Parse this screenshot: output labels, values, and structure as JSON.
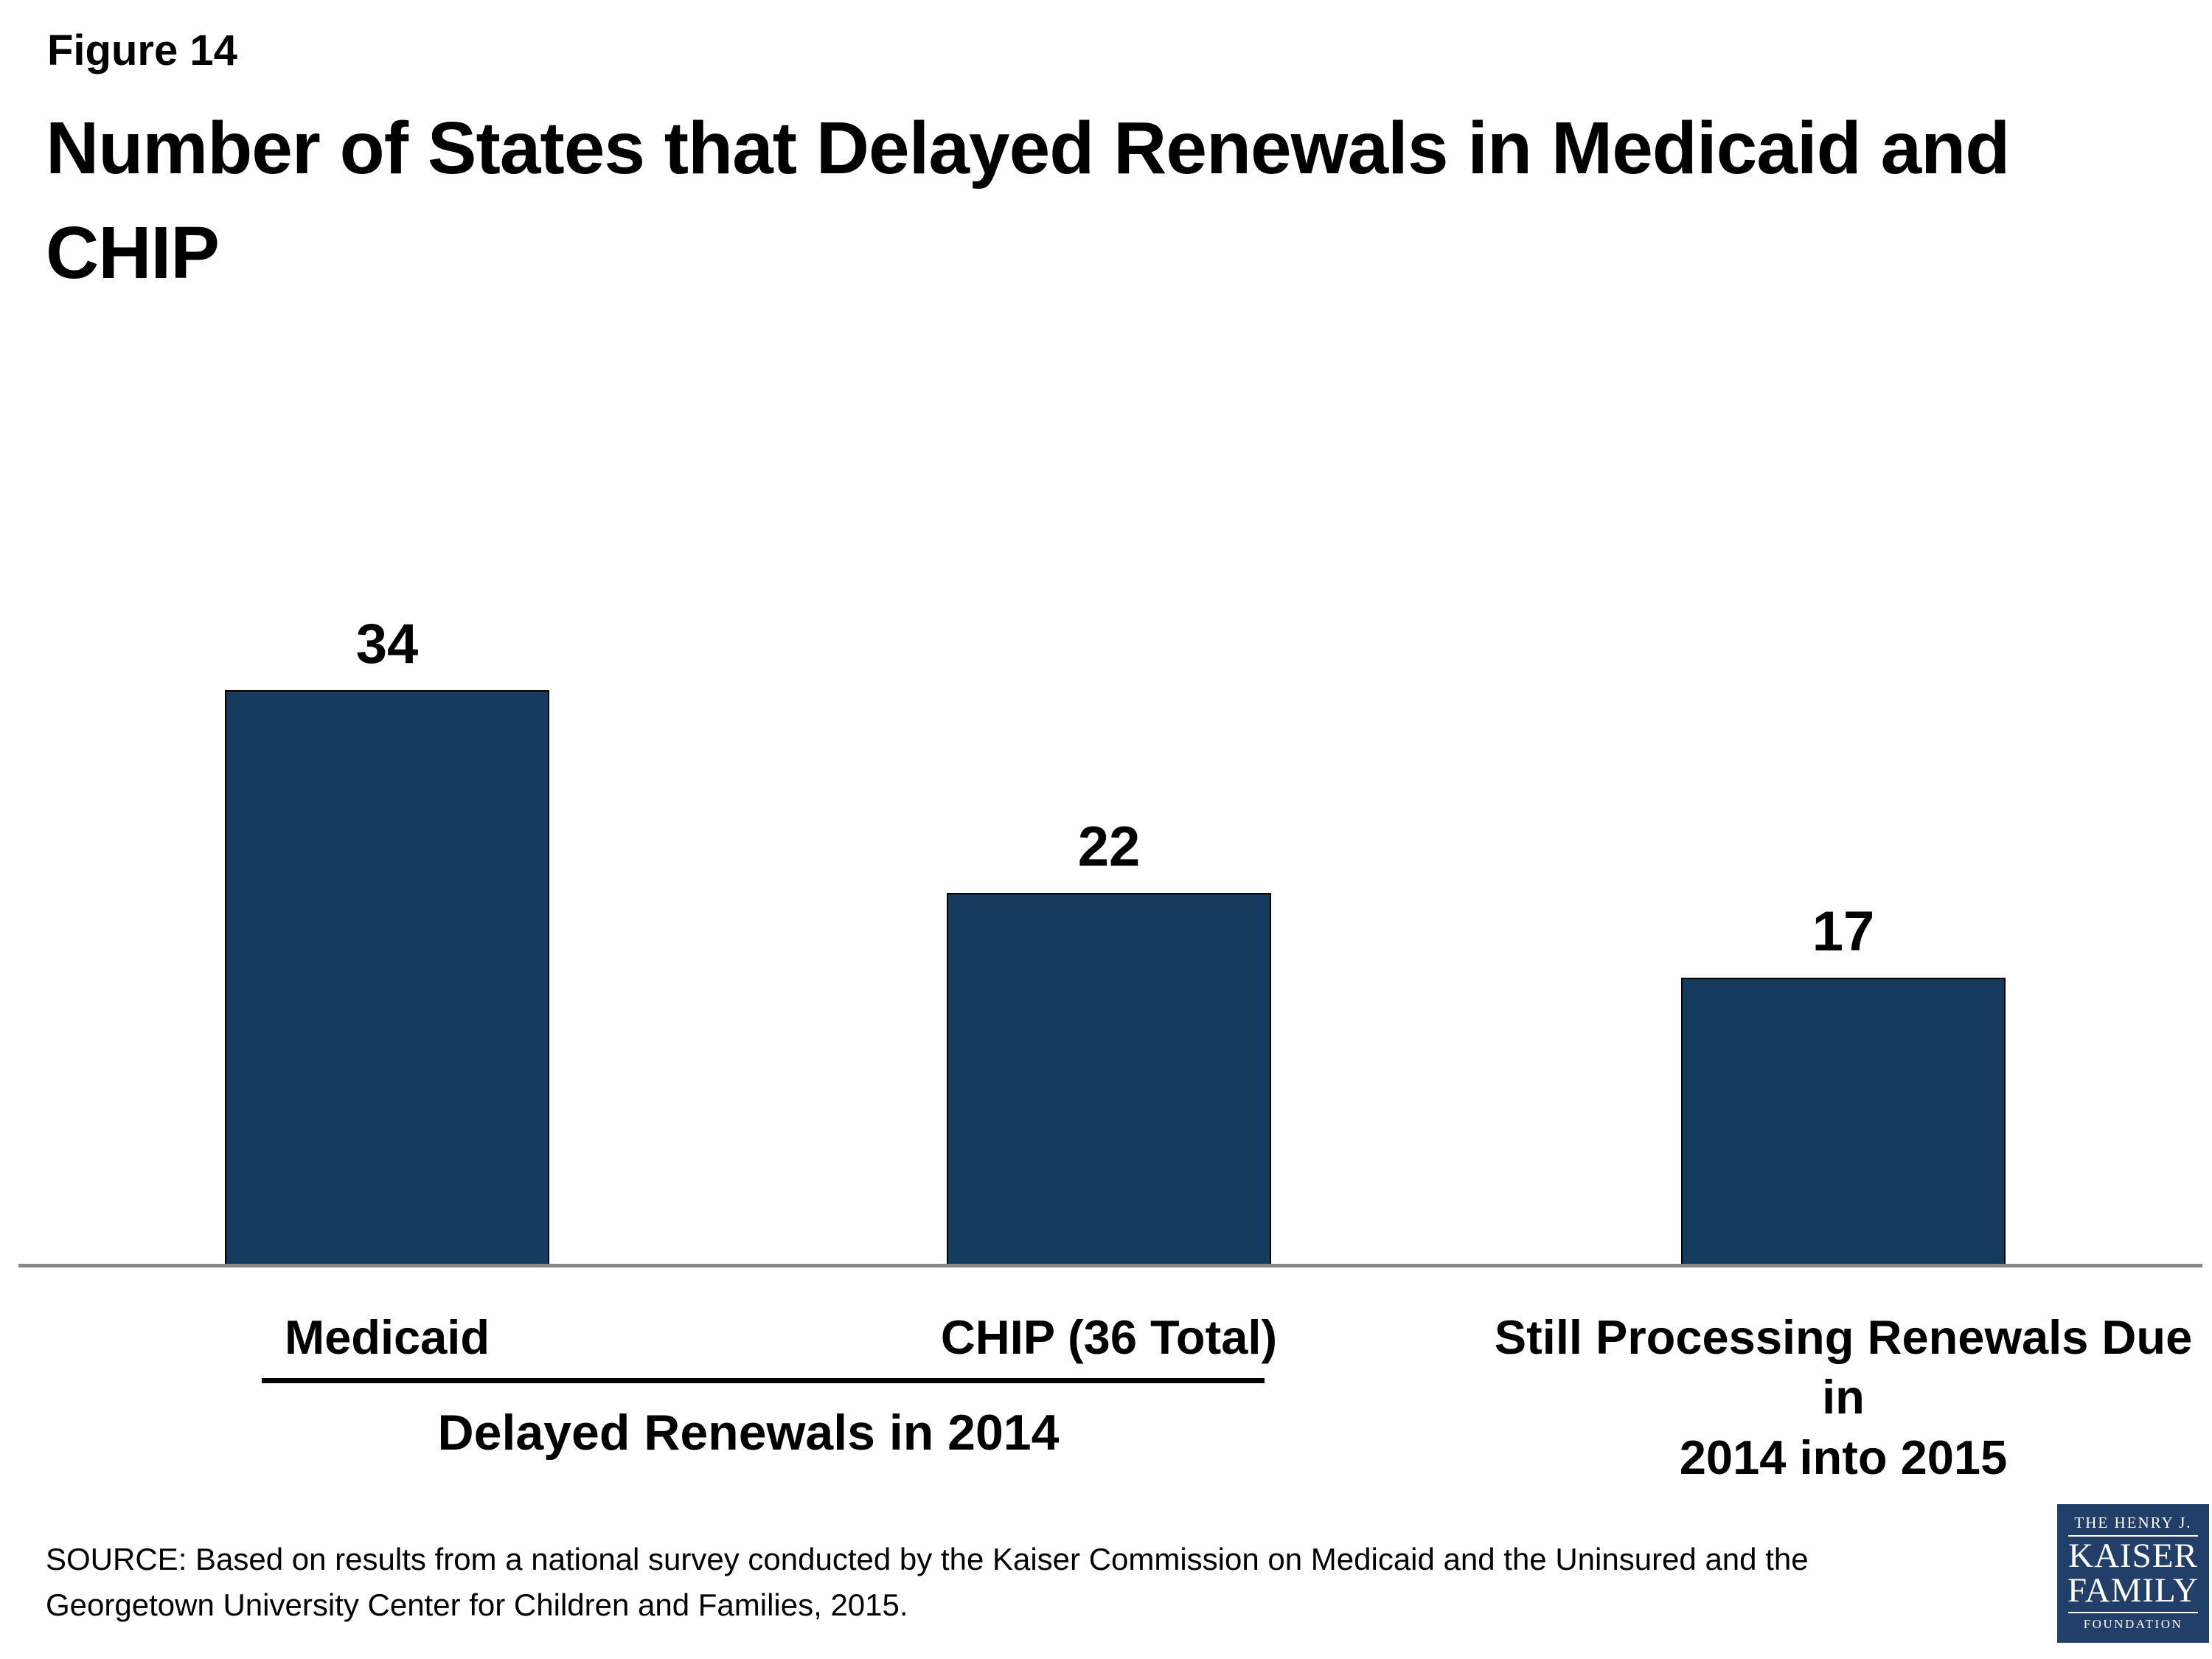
{
  "figure_label": "Figure 14",
  "title": "Number of States that Delayed Renewals in Medicaid and\nCHIP",
  "chart_data": {
    "type": "bar",
    "categories": [
      "Medicaid",
      "CHIP (36 Total)",
      "Still Processing Renewals Due in\n2014 into 2015"
    ],
    "values": [
      34,
      22,
      17
    ],
    "value_labels": [
      "34",
      "22",
      "17"
    ],
    "group_label": "Delayed Renewals in 2014",
    "group_span_categories": [
      "Medicaid",
      "CHIP (36 Total)"
    ],
    "title": "Number of States that Delayed Renewals in Medicaid and CHIP",
    "xlabel": "",
    "ylabel": "",
    "ylim": [
      0,
      40
    ],
    "grid": false,
    "legend": false,
    "bar_color": "#143a5e",
    "bar_border_color": "#000000",
    "axis_line_color": "#888888",
    "value_label_color": "#000000"
  },
  "source": "SOURCE: Based on results from a national survey conducted by the Kaiser Commission on Medicaid and the Uninsured and the\nGeorgetown University Center for Children and Families, 2015.",
  "logo": {
    "top": "THE HENRY J.",
    "kaiser": "KAISER",
    "family": "FAMILY",
    "foundation": "FOUNDATION",
    "bg_color": "#223f6a"
  }
}
